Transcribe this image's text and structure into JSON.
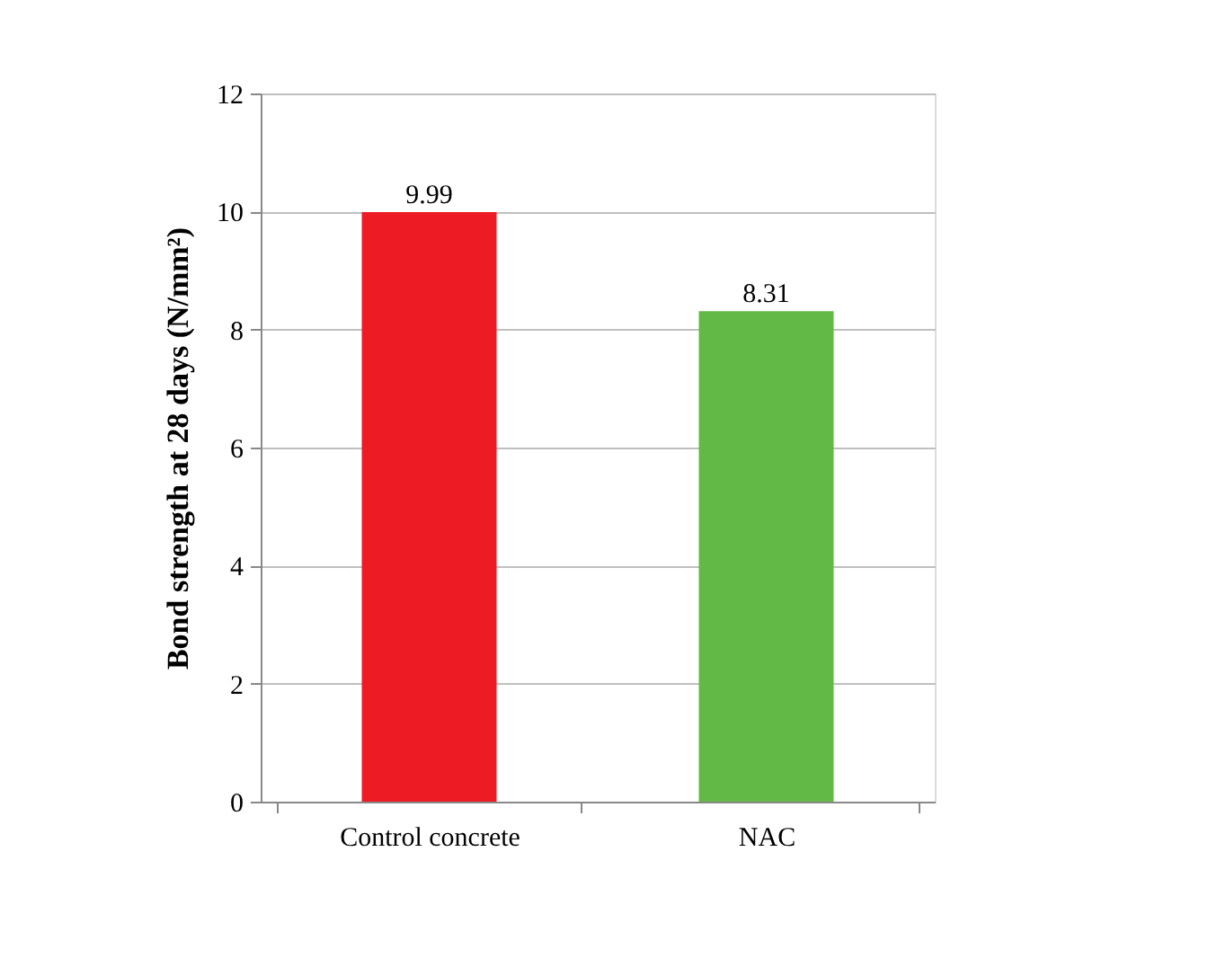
{
  "chart_data": {
    "type": "bar",
    "ylabel": "Bond strength at 28 days (N/mm²)",
    "categories": [
      "Control concrete",
      "NAC"
    ],
    "values": [
      9.99,
      8.31
    ],
    "colors": [
      "#ed1c24",
      "#63b946"
    ],
    "ylim": [
      0,
      12
    ],
    "yticks": [
      0,
      2,
      4,
      6,
      8,
      10,
      12
    ],
    "grid": "y",
    "data_labels": true
  }
}
